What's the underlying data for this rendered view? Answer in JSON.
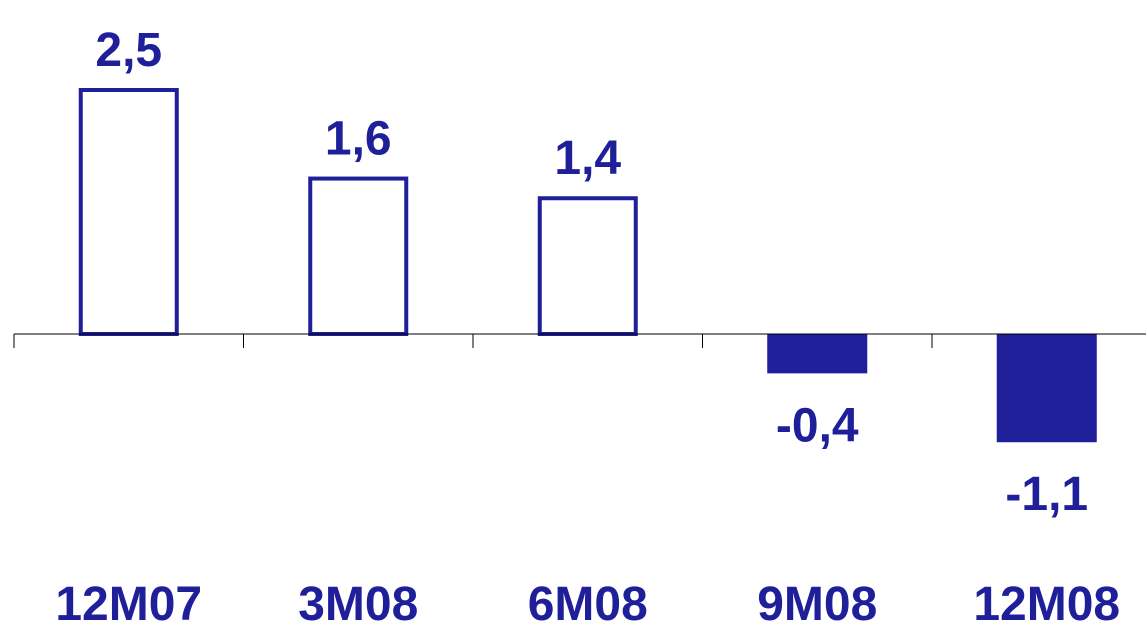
{
  "chart_data": {
    "type": "bar",
    "categories": [
      "12M07",
      "3M08",
      "6M08",
      "9M08",
      "12M08"
    ],
    "values": [
      2.5,
      1.6,
      1.4,
      -0.4,
      -1.1
    ],
    "value_labels": [
      "2,5",
      "1,6",
      "1,4",
      "-0,4",
      "-1,1"
    ],
    "bar_styles": [
      "outline",
      "outline",
      "outline",
      "filled",
      "filled"
    ],
    "title": "",
    "xlabel": "",
    "ylabel": "",
    "grid": false,
    "legend": "none",
    "colors": {
      "bar": "#1f1f99",
      "axis": "#000000",
      "text": "#1f1f99"
    }
  }
}
